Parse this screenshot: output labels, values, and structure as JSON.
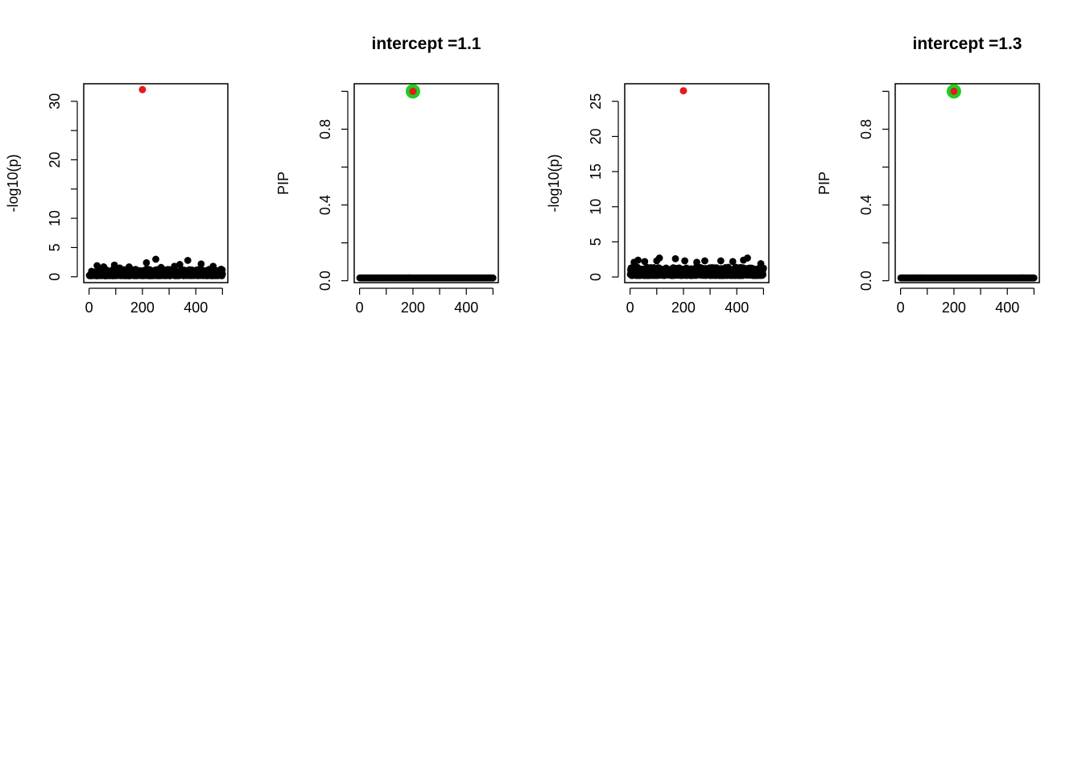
{
  "figure": {
    "colors": {
      "point": "#000000",
      "highlight": "#e41a1c",
      "credible_set": "#22cc22",
      "axis": "#000000"
    },
    "icons": []
  },
  "chart_data": [
    {
      "type": "scatter",
      "title": "",
      "xlabel": "",
      "ylabel": "-log10(p)",
      "xlim": [
        -20,
        520
      ],
      "ylim": [
        -1,
        33
      ],
      "xticks": [
        0,
        100,
        200,
        300,
        400,
        500
      ],
      "xtick_labels": [
        "0",
        "",
        "200",
        "",
        "400",
        ""
      ],
      "yticks": [
        0,
        5,
        10,
        15,
        20,
        25,
        30
      ],
      "ytick_labels": [
        "0",
        "5",
        "10",
        "",
        "20",
        "",
        "30"
      ],
      "grid": false,
      "legend": "none",
      "n_points": 500,
      "background_level": 0.6,
      "background_spread": 1.1,
      "highlight": [
        {
          "x": 200,
          "y": 32
        }
      ],
      "credible_set": [],
      "peaks": [
        {
          "x": 30,
          "y": 1.9
        },
        {
          "x": 55,
          "y": 1.7
        },
        {
          "x": 95,
          "y": 2.0
        },
        {
          "x": 115,
          "y": 1.5
        },
        {
          "x": 150,
          "y": 1.7
        },
        {
          "x": 215,
          "y": 2.4
        },
        {
          "x": 250,
          "y": 3.0
        },
        {
          "x": 270,
          "y": 1.6
        },
        {
          "x": 320,
          "y": 1.8
        },
        {
          "x": 340,
          "y": 2.1
        },
        {
          "x": 370,
          "y": 2.8
        },
        {
          "x": 420,
          "y": 2.2
        },
        {
          "x": 465,
          "y": 1.8
        },
        {
          "x": 495,
          "y": 1.3
        }
      ]
    },
    {
      "type": "scatter",
      "title": "intercept =1.1",
      "xlabel": "",
      "ylabel": "PIP",
      "xlim": [
        -20,
        520
      ],
      "ylim": [
        -0.01,
        1.04
      ],
      "xticks": [
        0,
        100,
        200,
        300,
        400,
        500
      ],
      "xtick_labels": [
        "0",
        "",
        "200",
        "",
        "400",
        ""
      ],
      "yticks": [
        0,
        0.2,
        0.4,
        0.6,
        0.8,
        1.0
      ],
      "ytick_labels": [
        "0.0",
        "",
        "0.4",
        "",
        "0.8",
        ""
      ],
      "grid": false,
      "legend": "none",
      "n_points": 500,
      "background_level": 0.015,
      "background_spread": 0,
      "highlight": [
        {
          "x": 200,
          "y": 1.0
        }
      ],
      "credible_set": [
        {
          "x": 200,
          "y": 1.0
        }
      ],
      "peaks": []
    },
    {
      "type": "scatter",
      "title": "",
      "xlabel": "",
      "ylabel": "-log10(p)",
      "xlim": [
        -20,
        520
      ],
      "ylim": [
        -0.8,
        27.5
      ],
      "xticks": [
        0,
        100,
        200,
        300,
        400,
        500
      ],
      "xtick_labels": [
        "0",
        "",
        "200",
        "",
        "400",
        ""
      ],
      "yticks": [
        0,
        5,
        10,
        15,
        20,
        25
      ],
      "ytick_labels": [
        "0",
        "5",
        "10",
        "15",
        "20",
        "25"
      ],
      "grid": false,
      "legend": "none",
      "n_points": 500,
      "background_level": 0.7,
      "background_spread": 1.2,
      "highlight": [
        {
          "x": 200,
          "y": 26.5
        }
      ],
      "credible_set": [],
      "peaks": [
        {
          "x": 15,
          "y": 2.1
        },
        {
          "x": 30,
          "y": 2.4
        },
        {
          "x": 55,
          "y": 2.2
        },
        {
          "x": 100,
          "y": 2.3
        },
        {
          "x": 110,
          "y": 2.7
        },
        {
          "x": 170,
          "y": 2.6
        },
        {
          "x": 205,
          "y": 2.3
        },
        {
          "x": 250,
          "y": 2.1
        },
        {
          "x": 280,
          "y": 2.3
        },
        {
          "x": 340,
          "y": 2.3
        },
        {
          "x": 385,
          "y": 2.2
        },
        {
          "x": 425,
          "y": 2.4
        },
        {
          "x": 440,
          "y": 2.7
        },
        {
          "x": 490,
          "y": 1.9
        }
      ]
    },
    {
      "type": "scatter",
      "title": "intercept =1.3",
      "xlabel": "",
      "ylabel": "PIP",
      "xlim": [
        -20,
        520
      ],
      "ylim": [
        -0.01,
        1.04
      ],
      "xticks": [
        0,
        100,
        200,
        300,
        400,
        500
      ],
      "xtick_labels": [
        "0",
        "",
        "200",
        "",
        "400",
        ""
      ],
      "yticks": [
        0,
        0.2,
        0.4,
        0.6,
        0.8,
        1.0
      ],
      "ytick_labels": [
        "0.0",
        "",
        "0.4",
        "",
        "0.8",
        ""
      ],
      "grid": false,
      "legend": "none",
      "n_points": 500,
      "background_level": 0.015,
      "background_spread": 0,
      "highlight": [
        {
          "x": 200,
          "y": 1.0
        }
      ],
      "credible_set": [
        {
          "x": 200,
          "y": 1.0
        }
      ],
      "peaks": []
    }
  ]
}
